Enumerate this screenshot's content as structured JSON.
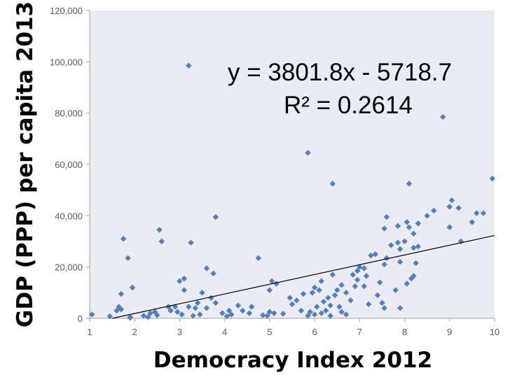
{
  "chart_data": {
    "type": "scatter",
    "title": "",
    "xlabel": "Democracy Index 2012",
    "ylabel": "GDP (PPP) per capita 2013",
    "xlim": [
      1,
      10
    ],
    "ylim": [
      0,
      120000
    ],
    "x_ticks": [
      "1",
      "2",
      "3",
      "4",
      "5",
      "6",
      "7",
      "8",
      "9",
      "10"
    ],
    "y_ticks": [
      "0",
      "20,000",
      "40,000",
      "60,000",
      "80,000",
      "100,000",
      "120,000"
    ],
    "grid": false,
    "legend": "none",
    "marker_color": "#4f81bd",
    "trendline": {
      "slope": 3801.8,
      "intercept": -5718.7,
      "equation_label": "y = 3801.8x - 5718.7",
      "r2_label": "R² = 0.2614",
      "color": "#000000"
    },
    "points": [
      [
        3.2,
        98500
      ],
      [
        8.85,
        78500
      ],
      [
        5.85,
        64500
      ],
      [
        6.4,
        52500
      ],
      [
        8.1,
        52500
      ],
      [
        9.95,
        54500
      ],
      [
        9.05,
        46000
      ],
      [
        9.0,
        43500
      ],
      [
        9.2,
        43000
      ],
      [
        9.6,
        41000
      ],
      [
        9.75,
        41000
      ],
      [
        9.5,
        37500
      ],
      [
        9.25,
        30000
      ],
      [
        9.0,
        35500
      ],
      [
        8.65,
        42000
      ],
      [
        8.5,
        40000
      ],
      [
        8.3,
        37000
      ],
      [
        8.05,
        37500
      ],
      [
        8.1,
        35500
      ],
      [
        8.2,
        33000
      ],
      [
        7.85,
        36000
      ],
      [
        7.6,
        39500
      ],
      [
        7.55,
        35000
      ],
      [
        8.0,
        30000
      ],
      [
        7.85,
        29500
      ],
      [
        7.7,
        28500
      ],
      [
        7.9,
        27000
      ],
      [
        8.2,
        27500
      ],
      [
        8.3,
        28000
      ],
      [
        7.35,
        25000
      ],
      [
        7.25,
        24500
      ],
      [
        7.6,
        23500
      ],
      [
        7.55,
        21000
      ],
      [
        7.9,
        22000
      ],
      [
        8.2,
        16500
      ],
      [
        8.15,
        15500
      ],
      [
        8.05,
        13500
      ],
      [
        7.8,
        11000
      ],
      [
        7.4,
        9000
      ],
      [
        7.5,
        6000
      ],
      [
        7.55,
        4000
      ],
      [
        7.9,
        4000
      ],
      [
        7.0,
        20000
      ],
      [
        7.1,
        19500
      ],
      [
        6.95,
        18500
      ],
      [
        6.85,
        17000
      ],
      [
        7.15,
        16500
      ],
      [
        6.95,
        15000
      ],
      [
        7.1,
        12500
      ],
      [
        6.6,
        13000
      ],
      [
        6.5,
        11000
      ],
      [
        6.7,
        10000
      ],
      [
        6.45,
        9000
      ],
      [
        6.3,
        8000
      ],
      [
        6.2,
        6500
      ],
      [
        6.35,
        5000
      ],
      [
        6.55,
        4500
      ],
      [
        6.6,
        2500
      ],
      [
        6.7,
        1500
      ],
      [
        6.1,
        11000
      ],
      [
        6.0,
        12000
      ],
      [
        5.95,
        10000
      ],
      [
        5.75,
        9500
      ],
      [
        5.6,
        7000
      ],
      [
        5.5,
        5500
      ],
      [
        5.7,
        3000
      ],
      [
        5.9,
        2500
      ],
      [
        6.0,
        1500
      ],
      [
        6.15,
        2000
      ],
      [
        6.35,
        1000
      ],
      [
        5.85,
        1000
      ],
      [
        5.75,
        9500
      ],
      [
        5.05,
        14500
      ],
      [
        5.15,
        13500
      ],
      [
        5.0,
        11000
      ],
      [
        4.75,
        23500
      ],
      [
        5.1,
        2000
      ],
      [
        5.0,
        2500
      ],
      [
        4.85,
        1200
      ],
      [
        4.6,
        4500
      ],
      [
        4.55,
        2000
      ],
      [
        4.3,
        5000
      ],
      [
        4.4,
        3000
      ],
      [
        4.1,
        3000
      ],
      [
        4.15,
        1500
      ],
      [
        3.95,
        2000
      ],
      [
        4.05,
        800
      ],
      [
        3.8,
        39500
      ],
      [
        3.75,
        17500
      ],
      [
        3.6,
        19500
      ],
      [
        3.7,
        8000
      ],
      [
        3.8,
        6000
      ],
      [
        3.5,
        10000
      ],
      [
        3.4,
        6000
      ],
      [
        3.6,
        4000
      ],
      [
        3.45,
        1500
      ],
      [
        3.3,
        1000
      ],
      [
        3.2,
        4500
      ],
      [
        3.05,
        1500
      ],
      [
        2.95,
        2500
      ],
      [
        3.25,
        29500
      ],
      [
        3.0,
        14500
      ],
      [
        3.1,
        15500
      ],
      [
        3.1,
        11000
      ],
      [
        2.9,
        4500
      ],
      [
        2.75,
        4500
      ],
      [
        2.8,
        3000
      ],
      [
        2.5,
        1200
      ],
      [
        2.55,
        34500
      ],
      [
        2.6,
        30000
      ],
      [
        2.45,
        2500
      ],
      [
        2.35,
        2000
      ],
      [
        2.2,
        1000
      ],
      [
        2.3,
        500
      ],
      [
        1.75,
        31000
      ],
      [
        1.85,
        23500
      ],
      [
        1.7,
        9500
      ],
      [
        1.65,
        4500
      ],
      [
        1.95,
        12000
      ],
      [
        1.9,
        500
      ],
      [
        1.6,
        3000
      ],
      [
        1.45,
        800
      ],
      [
        1.7,
        3500
      ],
      [
        1.05,
        1500
      ],
      [
        1.9,
        200
      ],
      [
        6.05,
        4500
      ],
      [
        6.25,
        3000
      ],
      [
        5.3,
        1800
      ],
      [
        4.95,
        1000
      ],
      [
        6.8,
        7000
      ],
      [
        7.2,
        5500
      ],
      [
        5.45,
        8000
      ],
      [
        6.15,
        14500
      ],
      [
        6.4,
        17000
      ],
      [
        6.9,
        12500
      ],
      [
        7.45,
        14000
      ],
      [
        8.25,
        21500
      ],
      [
        3.35,
        4000
      ]
    ]
  }
}
